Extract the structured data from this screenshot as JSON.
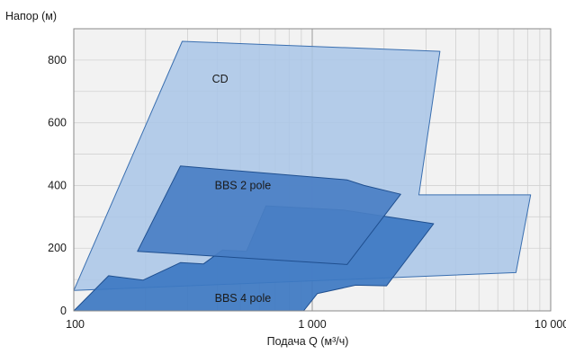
{
  "chart_data": {
    "type": "area",
    "title": "",
    "ylabel": "Напор (м)",
    "xlabel": "Подача Q (м³/ч)",
    "x_scale": "log",
    "xlim": [
      100,
      10000
    ],
    "ylim": [
      0,
      900
    ],
    "grid": true,
    "x_ticks": [
      {
        "value": 100,
        "label": "100"
      },
      {
        "value": 1000,
        "label": "1 000"
      },
      {
        "value": 10000,
        "label": "10 000"
      }
    ],
    "y_ticks": [
      {
        "value": 0,
        "label": "0"
      },
      {
        "value": 200,
        "label": "200"
      },
      {
        "value": 400,
        "label": "400"
      },
      {
        "value": 600,
        "label": "600"
      },
      {
        "value": 800,
        "label": "800"
      }
    ],
    "series": [
      {
        "name": "CD",
        "color": "#a9c6e8",
        "stroke": "#3a6fb0",
        "label_at": [
          380,
          740
        ],
        "points": [
          [
            100,
            65
          ],
          [
            285,
            860
          ],
          [
            3430,
            828
          ],
          [
            2800,
            370
          ],
          [
            8240,
            370
          ],
          [
            7150,
            122
          ],
          [
            100,
            65
          ]
        ]
      },
      {
        "name": "BBS 4 pole",
        "color": "#3d78c2",
        "stroke": "#1f4f8f",
        "label_at": [
          390,
          40
        ],
        "points": [
          [
            100,
            0
          ],
          [
            140,
            112
          ],
          [
            195,
            98
          ],
          [
            280,
            154
          ],
          [
            350,
            150
          ],
          [
            420,
            194
          ],
          [
            530,
            190
          ],
          [
            640,
            335
          ],
          [
            1350,
            322
          ],
          [
            3230,
            278
          ],
          [
            2050,
            80
          ],
          [
            1520,
            82
          ],
          [
            1050,
            55
          ],
          [
            920,
            0
          ]
        ]
      },
      {
        "name": "BBS 2 pole",
        "color": "#4a7fc4",
        "stroke": "#1f4f8f",
        "label_at": [
          390,
          400
        ],
        "points": [
          [
            185,
            190
          ],
          [
            280,
            462
          ],
          [
            1400,
            418
          ],
          [
            1650,
            400
          ],
          [
            2350,
            372
          ],
          [
            1400,
            148
          ]
        ]
      }
    ]
  }
}
